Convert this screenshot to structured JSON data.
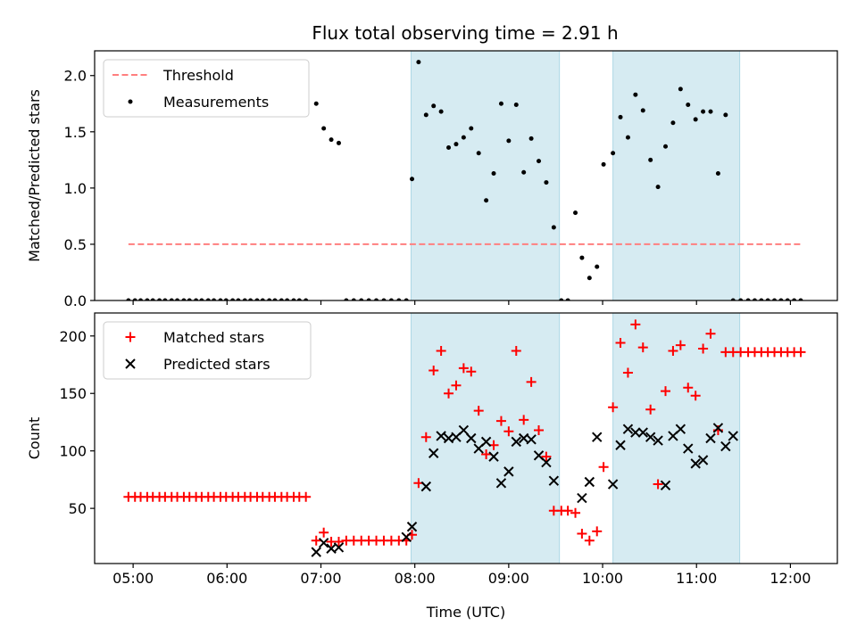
{
  "chart_data": [
    {
      "type": "scatter",
      "title": "Flux total observing time = 2.91 h",
      "ylabel": "Matched/Predicted stars",
      "xlabel": "",
      "xlim": [
        4.59,
        12.5
      ],
      "ylim": [
        0,
        2.22
      ],
      "x_tick_values": [
        5,
        6,
        7,
        8,
        9,
        10,
        11,
        12
      ],
      "y_ticks": [
        "0.0",
        "0.5",
        "1.0",
        "1.5",
        "2.0"
      ],
      "y_tick_values": [
        0,
        0.5,
        1.0,
        1.5,
        2.0
      ],
      "shaded_intervals": [
        [
          7.96,
          9.54
        ],
        [
          10.11,
          11.46
        ]
      ],
      "legend_position": "upper-left",
      "series": [
        {
          "name": "Threshold",
          "type": "line",
          "style": "dashed",
          "color": "#ff7f7f",
          "x": [
            4.95,
            12.12
          ],
          "y": [
            0.5,
            0.5
          ]
        },
        {
          "name": "Measurements",
          "type": "scatter",
          "marker": "dot",
          "color": "#000000",
          "x": [
            4.95,
            5.02,
            5.08,
            5.15,
            5.21,
            5.28,
            5.34,
            5.41,
            5.47,
            5.54,
            5.6,
            5.67,
            5.73,
            5.8,
            5.86,
            5.93,
            5.99,
            6.06,
            6.12,
            6.19,
            6.25,
            6.32,
            6.38,
            6.45,
            6.51,
            6.58,
            6.64,
            6.71,
            6.77,
            6.84,
            6.95,
            7.03,
            7.11,
            7.19,
            7.27,
            7.35,
            7.43,
            7.51,
            7.59,
            7.67,
            7.75,
            7.83,
            7.91,
            7.97,
            8.04,
            8.12,
            8.2,
            8.28,
            8.36,
            8.44,
            8.52,
            8.6,
            8.68,
            8.76,
            8.84,
            8.92,
            9.0,
            9.08,
            9.16,
            9.24,
            9.32,
            9.4,
            9.48,
            9.56,
            9.63,
            9.71,
            9.78,
            9.86,
            9.94,
            10.01,
            10.11,
            10.19,
            10.27,
            10.35,
            10.43,
            10.51,
            10.59,
            10.67,
            10.75,
            10.83,
            10.91,
            10.99,
            11.07,
            11.15,
            11.23,
            11.31,
            11.39,
            11.47,
            11.55,
            11.62,
            11.69,
            11.76,
            11.83,
            11.9,
            11.97,
            12.04,
            12.11
          ],
          "y": [
            0,
            0,
            0,
            0,
            0,
            0,
            0,
            0,
            0,
            0,
            0,
            0,
            0,
            0,
            0,
            0,
            0,
            0,
            0,
            0,
            0,
            0,
            0,
            0,
            0,
            0,
            0,
            0,
            0,
            0,
            1.75,
            1.53,
            1.43,
            1.4,
            0,
            0,
            0,
            0,
            0,
            0,
            0,
            0,
            0,
            1.08,
            2.12,
            1.65,
            1.73,
            1.68,
            1.36,
            1.39,
            1.45,
            1.53,
            1.31,
            0.89,
            1.13,
            1.75,
            1.42,
            1.74,
            1.14,
            1.44,
            1.24,
            1.05,
            0.65,
            0,
            0,
            0.78,
            0.38,
            0.2,
            0.3,
            1.21,
            1.31,
            1.63,
            1.45,
            1.83,
            1.69,
            1.25,
            1.01,
            1.37,
            1.58,
            1.88,
            1.74,
            1.61,
            1.68,
            1.68,
            1.13,
            1.65,
            0,
            0,
            0,
            0,
            0,
            0,
            0,
            0,
            0,
            0,
            0
          ]
        }
      ]
    },
    {
      "type": "scatter",
      "title": "",
      "ylabel": "Count",
      "xlabel": "Time (UTC)",
      "xlim": [
        4.59,
        12.5
      ],
      "ylim": [
        2,
        220
      ],
      "x_ticks": [
        "05:00",
        "06:00",
        "07:00",
        "08:00",
        "09:00",
        "10:00",
        "11:00",
        "12:00"
      ],
      "x_tick_values": [
        5,
        6,
        7,
        8,
        9,
        10,
        11,
        12
      ],
      "y_ticks": [
        "50",
        "100",
        "150",
        "200"
      ],
      "y_tick_values": [
        50,
        100,
        150,
        200
      ],
      "shaded_intervals": [
        [
          7.96,
          9.54
        ],
        [
          10.11,
          11.46
        ]
      ],
      "legend_position": "upper-left",
      "series": [
        {
          "name": "Matched stars",
          "type": "scatter",
          "marker": "plus",
          "color": "#ff0000",
          "x": [
            4.95,
            5.02,
            5.08,
            5.15,
            5.21,
            5.28,
            5.34,
            5.41,
            5.47,
            5.54,
            5.6,
            5.67,
            5.73,
            5.8,
            5.86,
            5.93,
            5.99,
            6.06,
            6.12,
            6.19,
            6.25,
            6.32,
            6.38,
            6.45,
            6.51,
            6.58,
            6.64,
            6.71,
            6.77,
            6.84,
            6.95,
            7.03,
            7.11,
            7.19,
            7.27,
            7.35,
            7.43,
            7.51,
            7.59,
            7.67,
            7.75,
            7.83,
            7.91,
            7.97,
            8.04,
            8.12,
            8.2,
            8.28,
            8.36,
            8.44,
            8.52,
            8.6,
            8.68,
            8.76,
            8.84,
            8.92,
            9.0,
            9.08,
            9.16,
            9.24,
            9.32,
            9.4,
            9.48,
            9.56,
            9.63,
            9.71,
            9.78,
            9.86,
            9.94,
            10.01,
            10.11,
            10.19,
            10.27,
            10.35,
            10.43,
            10.51,
            10.59,
            10.67,
            10.75,
            10.83,
            10.91,
            10.99,
            11.07,
            11.15,
            11.23,
            11.31,
            11.39,
            11.47,
            11.55,
            11.62,
            11.69,
            11.76,
            11.83,
            11.9,
            11.97,
            12.04,
            12.11
          ],
          "y": [
            60,
            60,
            60,
            60,
            60,
            60,
            60,
            60,
            60,
            60,
            60,
            60,
            60,
            60,
            60,
            60,
            60,
            60,
            60,
            60,
            60,
            60,
            60,
            60,
            60,
            60,
            60,
            60,
            60,
            60,
            22,
            29,
            21,
            21,
            22,
            22,
            22,
            22,
            22,
            22,
            22,
            22,
            22,
            27,
            72,
            112,
            170,
            187,
            150,
            157,
            172,
            169,
            135,
            97,
            105,
            126,
            117,
            187,
            127,
            160,
            118,
            95,
            48,
            48,
            48,
            46,
            28,
            22,
            30,
            86,
            138,
            194,
            168,
            210,
            190,
            136,
            71,
            152,
            187,
            192,
            155,
            148,
            189,
            202,
            118,
            186,
            186,
            186,
            186,
            186,
            186,
            186,
            186,
            186,
            186,
            186,
            186
          ]
        },
        {
          "name": "Predicted stars",
          "type": "scatter",
          "marker": "cross",
          "color": "#000000",
          "x": [
            6.95,
            7.03,
            7.11,
            7.19,
            7.91,
            7.97,
            8.12,
            8.2,
            8.28,
            8.36,
            8.44,
            8.52,
            8.6,
            8.68,
            8.76,
            8.84,
            8.92,
            9.0,
            9.08,
            9.16,
            9.24,
            9.32,
            9.4,
            9.48,
            9.78,
            9.86,
            9.94,
            10.11,
            10.19,
            10.27,
            10.35,
            10.43,
            10.51,
            10.59,
            10.67,
            10.75,
            10.83,
            10.91,
            10.99,
            11.07,
            11.15,
            11.23,
            11.31,
            11.39
          ],
          "y": [
            12,
            20,
            15,
            16,
            25,
            34,
            69,
            98,
            113,
            111,
            112,
            118,
            111,
            102,
            108,
            95,
            72,
            82,
            108,
            111,
            110,
            96,
            90,
            74,
            59,
            73,
            112,
            71,
            105,
            119,
            116,
            116,
            112,
            109,
            70,
            113,
            119,
            102,
            89,
            92,
            111,
            120,
            104,
            113
          ]
        }
      ]
    }
  ]
}
